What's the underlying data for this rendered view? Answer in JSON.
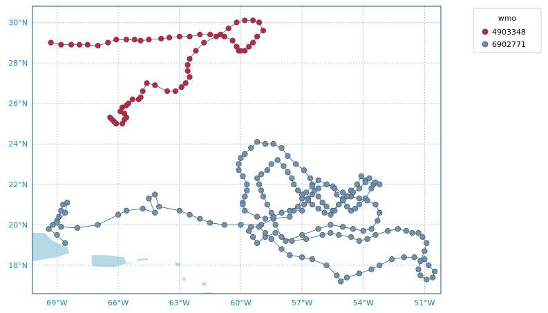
{
  "map": {
    "colors": {
      "frame": "#17507a",
      "grid": "#7fb3cc",
      "tick_label": "#1f8ab0",
      "land": "#b5dae6",
      "track_line": "#2a5a8a"
    }
  },
  "chart_data": {
    "type": "scatter",
    "xlim": [
      -70.2,
      -50.2
    ],
    "ylim": [
      16.6,
      30.8
    ],
    "x_ticks": [
      -69,
      -66,
      -63,
      -60,
      -57,
      -54,
      -51
    ],
    "y_ticks": [
      18,
      20,
      22,
      24,
      26,
      28,
      30
    ],
    "x_tick_labels": [
      "69°W",
      "66°W",
      "63°W",
      "60°W",
      "57°W",
      "54°W",
      "51°W"
    ],
    "y_tick_labels": [
      "18°N",
      "20°N",
      "22°N",
      "24°N",
      "26°N",
      "28°N",
      "30°N"
    ],
    "grid": true,
    "legend": {
      "title": "wmo",
      "placement": "outside-top-right"
    },
    "land": [
      {
        "name": "hispaniola-east",
        "coords": [
          [
            -70.2,
            19.6
          ],
          [
            -69.6,
            19.6
          ],
          [
            -69.2,
            19.2
          ],
          [
            -68.5,
            18.9
          ],
          [
            -68.4,
            18.6
          ],
          [
            -69.0,
            18.4
          ],
          [
            -69.6,
            18.3
          ],
          [
            -70.2,
            18.2
          ]
        ]
      },
      {
        "name": "puerto-rico",
        "coords": [
          [
            -67.3,
            18.5
          ],
          [
            -66.5,
            18.5
          ],
          [
            -65.7,
            18.4
          ],
          [
            -65.6,
            18.1
          ],
          [
            -66.2,
            17.9
          ],
          [
            -67.2,
            17.95
          ],
          [
            -67.3,
            18.1
          ]
        ]
      },
      {
        "name": "virgin-islands",
        "coords": [
          [
            -65.1,
            18.3
          ],
          [
            -64.6,
            18.35
          ],
          [
            -64.5,
            18.28
          ],
          [
            -65.0,
            18.22
          ]
        ]
      },
      {
        "name": "anguilla-stmartin",
        "coords": [
          [
            -63.2,
            18.15
          ],
          [
            -62.95,
            18.1
          ],
          [
            -63.0,
            17.95
          ],
          [
            -63.2,
            18.0
          ]
        ]
      },
      {
        "name": "antigua",
        "coords": [
          [
            -61.9,
            17.15
          ],
          [
            -61.7,
            17.15
          ],
          [
            -61.7,
            17.0
          ],
          [
            -61.9,
            17.0
          ]
        ]
      },
      {
        "name": "st-kitts",
        "coords": [
          [
            -62.85,
            17.4
          ],
          [
            -62.7,
            17.4
          ],
          [
            -62.7,
            17.25
          ],
          [
            -62.85,
            17.25
          ]
        ]
      },
      {
        "name": "guadeloupe",
        "coords": [
          [
            -61.8,
            16.6
          ],
          [
            -61.4,
            16.6
          ],
          [
            -61.4,
            16.65
          ],
          [
            -61.8,
            16.65
          ]
        ]
      },
      {
        "name": "vieques",
        "coords": [
          [
            -65.6,
            18.13
          ],
          [
            -65.3,
            18.15
          ],
          [
            -65.3,
            18.1
          ],
          [
            -65.6,
            18.08
          ]
        ]
      }
    ],
    "series": [
      {
        "name": "4903348",
        "color": "#d21f35",
        "points": [
          [
            -69.3,
            29.0
          ],
          [
            -68.8,
            28.9
          ],
          [
            -68.3,
            28.9
          ],
          [
            -67.9,
            28.9
          ],
          [
            -67.5,
            28.9
          ],
          [
            -67.0,
            28.85
          ],
          [
            -66.5,
            29.0
          ],
          [
            -66.1,
            29.15
          ],
          [
            -65.6,
            29.15
          ],
          [
            -65.2,
            29.15
          ],
          [
            -64.9,
            29.1
          ],
          [
            -64.5,
            29.15
          ],
          [
            -63.9,
            29.2
          ],
          [
            -63.5,
            29.25
          ],
          [
            -63.0,
            29.3
          ],
          [
            -62.5,
            29.3
          ],
          [
            -62.0,
            29.4
          ],
          [
            -61.5,
            29.4
          ],
          [
            -61.0,
            29.4
          ],
          [
            -60.6,
            29.7
          ],
          [
            -60.2,
            30.0
          ],
          [
            -59.8,
            30.1
          ],
          [
            -59.4,
            30.1
          ],
          [
            -59.1,
            30.0
          ],
          [
            -58.9,
            29.6
          ],
          [
            -59.2,
            29.3
          ],
          [
            -59.4,
            29.0
          ],
          [
            -59.6,
            28.8
          ],
          [
            -59.8,
            28.6
          ],
          [
            -60.0,
            28.6
          ],
          [
            -60.1,
            28.6
          ],
          [
            -60.2,
            28.8
          ],
          [
            -60.4,
            29.1
          ],
          [
            -60.8,
            29.3
          ],
          [
            -61.2,
            29.3
          ],
          [
            -61.8,
            29.0
          ],
          [
            -62.2,
            28.6
          ],
          [
            -62.5,
            28.2
          ],
          [
            -62.6,
            27.9
          ],
          [
            -62.6,
            27.6
          ],
          [
            -62.5,
            27.3
          ],
          [
            -62.7,
            27.0
          ],
          [
            -62.9,
            26.8
          ],
          [
            -63.2,
            26.6
          ],
          [
            -63.6,
            26.6
          ],
          [
            -64.2,
            26.9
          ],
          [
            -64.6,
            27.0
          ],
          [
            -64.8,
            26.6
          ],
          [
            -64.9,
            26.3
          ],
          [
            -65.0,
            26.2
          ],
          [
            -65.3,
            26.2
          ],
          [
            -65.5,
            26.0
          ],
          [
            -65.6,
            25.9
          ],
          [
            -65.8,
            25.8
          ],
          [
            -65.9,
            25.6
          ],
          [
            -65.7,
            25.5
          ],
          [
            -65.6,
            25.3
          ],
          [
            -65.7,
            25.2
          ],
          [
            -65.8,
            25.0
          ],
          [
            -66.1,
            25.0
          ],
          [
            -66.2,
            25.1
          ],
          [
            -66.3,
            25.2
          ],
          [
            -66.4,
            25.3
          ]
        ]
      },
      {
        "name": "6902771",
        "color": "#7b8fa0",
        "points": [
          [
            -68.6,
            19.1
          ],
          [
            -69.0,
            19.5
          ],
          [
            -69.4,
            19.8
          ],
          [
            -69.2,
            20.0
          ],
          [
            -69.0,
            20.2
          ],
          [
            -68.9,
            20.4
          ],
          [
            -68.8,
            20.7
          ],
          [
            -68.7,
            21.0
          ],
          [
            -68.5,
            21.1
          ],
          [
            -68.6,
            20.6
          ],
          [
            -69.0,
            20.1
          ],
          [
            -68.8,
            19.9
          ],
          [
            -68.0,
            19.85
          ],
          [
            -67.0,
            20.0
          ],
          [
            -66.0,
            20.5
          ],
          [
            -65.6,
            20.7
          ],
          [
            -64.8,
            20.8
          ],
          [
            -64.2,
            20.6
          ],
          [
            -64.5,
            21.3
          ],
          [
            -64.2,
            21.5
          ],
          [
            -64.0,
            20.9
          ],
          [
            -63.0,
            20.7
          ],
          [
            -62.5,
            20.5
          ],
          [
            -62.0,
            20.3
          ],
          [
            -61.5,
            20.1
          ],
          [
            -60.8,
            20.0
          ],
          [
            -60.0,
            20.0
          ],
          [
            -59.0,
            20.0
          ],
          [
            -58.4,
            20.3
          ],
          [
            -57.6,
            20.4
          ],
          [
            -57.4,
            20.7
          ],
          [
            -57.0,
            20.7
          ],
          [
            -56.9,
            21.0
          ],
          [
            -56.7,
            21.3
          ],
          [
            -56.5,
            21.5
          ],
          [
            -56.2,
            21.8
          ],
          [
            -55.8,
            22.0
          ],
          [
            -55.5,
            21.9
          ],
          [
            -55.3,
            21.5
          ],
          [
            -55.0,
            21.2
          ],
          [
            -54.8,
            20.9
          ],
          [
            -54.6,
            20.7
          ],
          [
            -54.4,
            20.8
          ],
          [
            -54.2,
            21.0
          ],
          [
            -53.9,
            21.3
          ],
          [
            -53.6,
            21.8
          ],
          [
            -53.5,
            22.0
          ],
          [
            -53.9,
            22.2
          ],
          [
            -54.1,
            22.4
          ],
          [
            -54.3,
            22.0
          ],
          [
            -54.6,
            21.7
          ],
          [
            -55.0,
            21.3
          ],
          [
            -55.2,
            21.0
          ],
          [
            -55.5,
            20.7
          ],
          [
            -55.8,
            20.9
          ],
          [
            -56.0,
            21.1
          ],
          [
            -56.2,
            21.4
          ],
          [
            -56.4,
            21.7
          ],
          [
            -56.5,
            22.0
          ],
          [
            -56.6,
            22.3
          ],
          [
            -56.9,
            22.7
          ],
          [
            -57.3,
            23.0
          ],
          [
            -57.7,
            23.4
          ],
          [
            -58.0,
            23.8
          ],
          [
            -58.4,
            24.0
          ],
          [
            -58.8,
            24.0
          ],
          [
            -59.2,
            24.1
          ],
          [
            -59.5,
            23.8
          ],
          [
            -59.8,
            23.5
          ],
          [
            -60.0,
            23.3
          ],
          [
            -60.1,
            23.0
          ],
          [
            -60.1,
            22.7
          ],
          [
            -59.9,
            22.4
          ],
          [
            -59.7,
            22.0
          ],
          [
            -59.7,
            21.7
          ],
          [
            -59.8,
            21.4
          ],
          [
            -59.9,
            21.1
          ],
          [
            -59.9,
            21.0
          ],
          [
            -59.8,
            20.7
          ],
          [
            -59.2,
            20.4
          ],
          [
            -58.8,
            20.3
          ],
          [
            -58.4,
            20.4
          ],
          [
            -58.0,
            20.6
          ],
          [
            -57.6,
            20.7
          ],
          [
            -57.2,
            20.9
          ],
          [
            -57.0,
            21.3
          ],
          [
            -56.8,
            21.6
          ],
          [
            -56.5,
            21.9
          ],
          [
            -56.2,
            22.2
          ],
          [
            -55.8,
            22.0
          ],
          [
            -55.4,
            21.8
          ],
          [
            -55.0,
            21.6
          ],
          [
            -54.6,
            21.4
          ],
          [
            -54.2,
            21.3
          ],
          [
            -53.8,
            21.2
          ],
          [
            -53.4,
            21.0
          ],
          [
            -53.2,
            20.6
          ],
          [
            -53.3,
            20.2
          ],
          [
            -53.6,
            19.8
          ],
          [
            -54.0,
            19.7
          ],
          [
            -54.5,
            19.8
          ],
          [
            -55.0,
            19.9
          ],
          [
            -55.6,
            20.0
          ],
          [
            -56.2,
            19.8
          ],
          [
            -57.0,
            19.5
          ],
          [
            -57.8,
            19.2
          ],
          [
            -58.3,
            19.6
          ],
          [
            -58.8,
            19.4
          ],
          [
            -59.2,
            19.1
          ],
          [
            -59.4,
            19.4
          ],
          [
            -59.6,
            19.7
          ],
          [
            -59.5,
            19.9
          ],
          [
            -59.1,
            19.9
          ],
          [
            -58.8,
            19.6
          ],
          [
            -58.5,
            19.3
          ],
          [
            -58.0,
            18.8
          ],
          [
            -57.6,
            18.5
          ],
          [
            -57.0,
            18.4
          ],
          [
            -56.5,
            18.3
          ],
          [
            -55.8,
            18.0
          ],
          [
            -55.3,
            17.5
          ],
          [
            -55.1,
            17.2
          ],
          [
            -54.8,
            17.4
          ],
          [
            -54.2,
            17.6
          ],
          [
            -53.6,
            17.8
          ],
          [
            -53.2,
            18.0
          ],
          [
            -52.6,
            18.3
          ],
          [
            -52.0,
            18.4
          ],
          [
            -51.5,
            18.4
          ],
          [
            -51.0,
            18.3
          ],
          [
            -50.8,
            18.0
          ],
          [
            -50.5,
            17.7
          ],
          [
            -50.6,
            17.4
          ],
          [
            -50.9,
            17.3
          ],
          [
            -51.2,
            17.5
          ],
          [
            -51.3,
            17.8
          ],
          [
            -51.2,
            18.2
          ],
          [
            -51.0,
            18.7
          ],
          [
            -50.9,
            19.1
          ],
          [
            -51.1,
            19.4
          ],
          [
            -51.3,
            19.6
          ],
          [
            -51.6,
            19.6
          ],
          [
            -51.9,
            19.7
          ],
          [
            -52.3,
            19.8
          ],
          [
            -52.8,
            19.7
          ],
          [
            -53.4,
            19.5
          ],
          [
            -53.8,
            19.3
          ],
          [
            -54.2,
            19.2
          ],
          [
            -54.6,
            19.4
          ],
          [
            -55.2,
            19.5
          ],
          [
            -55.6,
            19.6
          ],
          [
            -56.0,
            19.5
          ],
          [
            -56.8,
            19.3
          ],
          [
            -57.5,
            19.2
          ],
          [
            -58.0,
            19.4
          ],
          [
            -58.3,
            20.0
          ],
          [
            -58.5,
            20.6
          ],
          [
            -58.7,
            21.0
          ],
          [
            -58.9,
            21.4
          ],
          [
            -59.0,
            21.7
          ],
          [
            -59.1,
            22.0
          ],
          [
            -59.2,
            22.3
          ],
          [
            -59.0,
            22.5
          ],
          [
            -58.7,
            22.7
          ],
          [
            -58.5,
            23.0
          ],
          [
            -58.2,
            23.2
          ],
          [
            -57.9,
            22.9
          ],
          [
            -57.7,
            22.6
          ],
          [
            -57.5,
            22.3
          ],
          [
            -57.4,
            22.0
          ],
          [
            -57.2,
            21.7
          ],
          [
            -57.0,
            21.5
          ],
          [
            -56.7,
            21.2
          ],
          [
            -56.5,
            21.0
          ],
          [
            -56.2,
            20.8
          ],
          [
            -55.9,
            20.6
          ],
          [
            -55.6,
            20.5
          ],
          [
            -55.4,
            20.7
          ],
          [
            -55.2,
            21.0
          ],
          [
            -55.0,
            21.2
          ],
          [
            -54.8,
            21.4
          ],
          [
            -54.5,
            21.6
          ],
          [
            -54.2,
            21.8
          ],
          [
            -53.9,
            22.1
          ],
          [
            -53.7,
            22.3
          ],
          [
            -53.4,
            22.1
          ],
          [
            -53.2,
            22.0
          ]
        ]
      }
    ]
  }
}
